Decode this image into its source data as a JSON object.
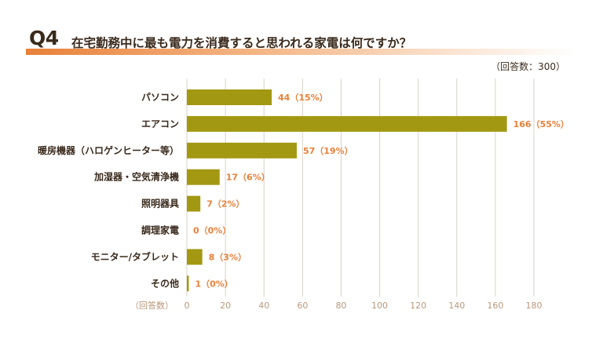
{
  "header": {
    "q_number": "Q4",
    "question": "在宅勤務中に最も電力を消費すると思われる家電は何ですか？",
    "respondents": "（回答数：300）"
  },
  "colors": {
    "bar": "#a39811",
    "accent": "#e8813a",
    "grid": "#d9d2c8",
    "text": "#3a2a1c"
  },
  "chart_data": {
    "type": "bar",
    "orientation": "horizontal",
    "title": "在宅勤務中に最も電力を消費すると思われる家電は何ですか？",
    "xlabel": "（回答数）",
    "ylabel": "",
    "xlim": [
      0,
      180
    ],
    "xticks": [
      0,
      20,
      40,
      60,
      80,
      100,
      120,
      140,
      160,
      180
    ],
    "grid": true,
    "categories": [
      "パソコン",
      "エアコン",
      "暖房機器（ハロゲンヒーター等）",
      "加湿器・空気清浄機",
      "照明器具",
      "調理家電",
      "モニター/タブレット",
      "その他"
    ],
    "values": [
      44,
      166,
      57,
      17,
      7,
      0,
      8,
      1
    ],
    "data_labels": [
      "44（15%）",
      "166（55%）",
      "57（19%）",
      "17（6%）",
      "7（2%）",
      "0（0%）",
      "8（3%）",
      "1（0%）"
    ]
  }
}
